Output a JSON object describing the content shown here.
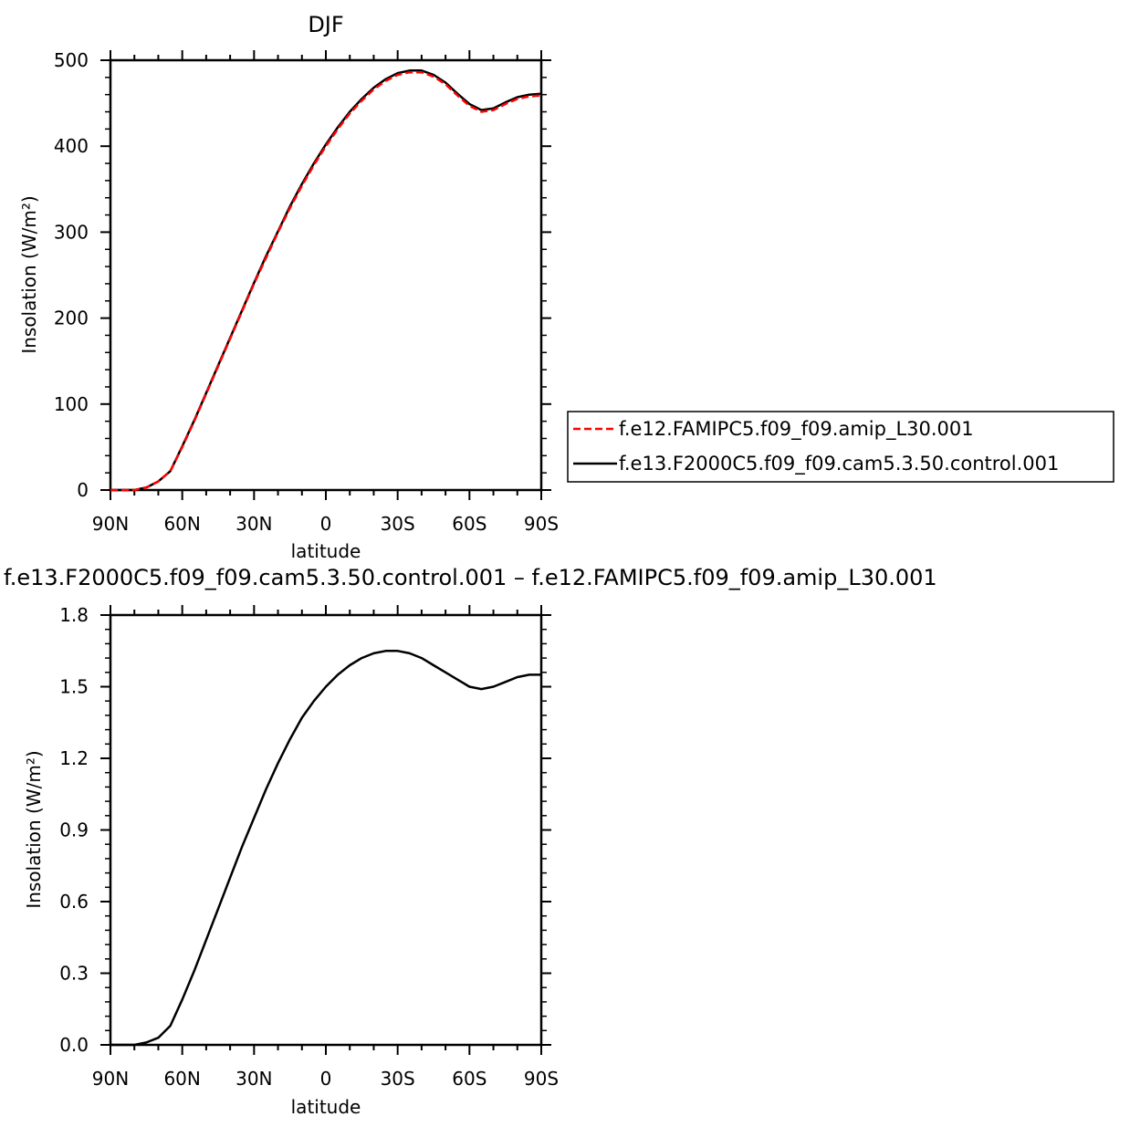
{
  "chart_data": [
    {
      "type": "line",
      "title": "DJF",
      "xlabel": "latitude",
      "ylabel": "Insolation  (W/m²)",
      "xlim": [
        90,
        -90
      ],
      "ylim": [
        0,
        500
      ],
      "x_ticks": [
        90,
        60,
        30,
        0,
        -30,
        -60,
        -90
      ],
      "x_tick_labels": [
        "90N",
        "60N",
        "30N",
        "0",
        "30S",
        "60S",
        "90S"
      ],
      "y_ticks": [
        0,
        100,
        200,
        300,
        400,
        500
      ],
      "y_tick_labels": [
        "0",
        "100",
        "200",
        "300",
        "400",
        "500"
      ],
      "legend_position": "right",
      "x": [
        90,
        85,
        80,
        75,
        70,
        65,
        60,
        55,
        50,
        45,
        40,
        35,
        30,
        25,
        20,
        15,
        10,
        5,
        0,
        -5,
        -10,
        -15,
        -20,
        -25,
        -30,
        -35,
        -40,
        -45,
        -50,
        -55,
        -60,
        -65,
        -70,
        -75,
        -80,
        -85,
        -90
      ],
      "series": [
        {
          "name": "f.e12.FAMIPC5.f09_f09.amip_L30.001",
          "color": "#ff0000",
          "dash": "dashed",
          "values": [
            0,
            0,
            0,
            3,
            10,
            22,
            50,
            80,
            112,
            144,
            176,
            208,
            240,
            270,
            300,
            328,
            354,
            378,
            400,
            420,
            438,
            453,
            466,
            476,
            483,
            486,
            486,
            481,
            472,
            459,
            447,
            440,
            442,
            449,
            455,
            458,
            459
          ]
        },
        {
          "name": "f.e13.F2000C5.f09_f09.cam5.3.50.control.001",
          "color": "#000000",
          "dash": "solid",
          "values": [
            0,
            0,
            0,
            3,
            10,
            22,
            51,
            81,
            113,
            145,
            177,
            209,
            241,
            272,
            301,
            330,
            356,
            380,
            402,
            422,
            440,
            455,
            468,
            478,
            485,
            488,
            488,
            483,
            474,
            461,
            449,
            442,
            444,
            451,
            457,
            460,
            461
          ]
        }
      ]
    },
    {
      "type": "line",
      "title": "f.e13.F2000C5.f09_f09.cam5.3.50.control.001  –  f.e12.FAMIPC5.f09_f09.amip_L30.001",
      "xlabel": "latitude",
      "ylabel": "Insolation  (W/m²)",
      "xlim": [
        90,
        -90
      ],
      "ylim": [
        0,
        1.8
      ],
      "x_ticks": [
        90,
        60,
        30,
        0,
        -30,
        -60,
        -90
      ],
      "x_tick_labels": [
        "90N",
        "60N",
        "30N",
        "0",
        "30S",
        "60S",
        "90S"
      ],
      "y_ticks": [
        0,
        0.3,
        0.6,
        0.9,
        1.2,
        1.5,
        1.8
      ],
      "y_tick_labels": [
        "0.0",
        "0.3",
        "0.6",
        "0.9",
        "1.2",
        "1.5",
        "1.8"
      ],
      "x": [
        90,
        85,
        80,
        75,
        70,
        65,
        60,
        55,
        50,
        45,
        40,
        35,
        30,
        25,
        20,
        15,
        10,
        5,
        0,
        -5,
        -10,
        -15,
        -20,
        -25,
        -30,
        -35,
        -40,
        -45,
        -50,
        -55,
        -60,
        -65,
        -70,
        -75,
        -80,
        -85,
        -90
      ],
      "series": [
        {
          "name": "",
          "color": "#000000",
          "dash": "solid",
          "values": [
            0,
            0,
            0,
            0.01,
            0.03,
            0.08,
            0.19,
            0.31,
            0.44,
            0.57,
            0.7,
            0.83,
            0.95,
            1.07,
            1.18,
            1.28,
            1.37,
            1.44,
            1.5,
            1.55,
            1.59,
            1.62,
            1.64,
            1.65,
            1.65,
            1.64,
            1.62,
            1.59,
            1.56,
            1.53,
            1.5,
            1.49,
            1.5,
            1.52,
            1.54,
            1.55,
            1.55
          ]
        }
      ]
    }
  ]
}
